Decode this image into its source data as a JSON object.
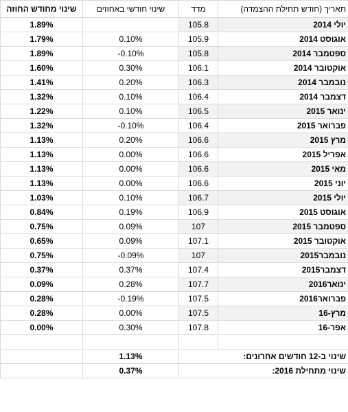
{
  "headers": {
    "pct": "שינוי מחודש החוזה",
    "change": "שינוי חודשי באחוזים",
    "index": "מדד",
    "date": "תאריך (חודש תחילת ההצמדה)"
  },
  "rows": [
    {
      "date": "יולי 2014",
      "index": "105.8",
      "change": "",
      "pct": "1.89%"
    },
    {
      "date": "אוגוסט 2014",
      "index": "105.9",
      "change": "0.10%",
      "pct": "1.79%"
    },
    {
      "date": "ספטמבר 2014",
      "index": "105.8",
      "change": "-0.10%",
      "pct": "1.89%"
    },
    {
      "date": "אוקטובר 2014",
      "index": "106.1",
      "change": "0.30%",
      "pct": "1.60%"
    },
    {
      "date": "נובמבר 2014",
      "index": "106.3",
      "change": "0.20%",
      "pct": "1.41%"
    },
    {
      "date": "דצמבר 2014",
      "index": "106.4",
      "change": "0.10%",
      "pct": "1.32%"
    },
    {
      "date": "ינואר 2015",
      "index": "106.5",
      "change": "0.10%",
      "pct": "1.22%"
    },
    {
      "date": "פברואר 2015",
      "index": "106.4",
      "change": "-0.10%",
      "pct": "1.32%"
    },
    {
      "date": "מרץ 2015",
      "index": "106.6",
      "change": "0.20%",
      "pct": "1.13%"
    },
    {
      "date": "אפריל 2015",
      "index": "106.6",
      "change": "0.00%",
      "pct": "1.13%"
    },
    {
      "date": "מאי 2015",
      "index": "106.6",
      "change": "0.00%",
      "pct": "1.13%"
    },
    {
      "date": "יוני 2015",
      "index": "106.6",
      "change": "0.00%",
      "pct": "1.13%"
    },
    {
      "date": "יולי 2015",
      "index": "106.7",
      "change": "0.10%",
      "pct": "1.03%"
    },
    {
      "date": "אוגוסט 2015",
      "index": "106.9",
      "change": "0.19%",
      "pct": "0.84%"
    },
    {
      "date": "ספטמבר 2015",
      "index": "107",
      "change": "0.09%",
      "pct": "0.75%"
    },
    {
      "date": "אוקטובר 2015",
      "index": "107.1",
      "change": "0.09%",
      "pct": "0.65%"
    },
    {
      "date": "נובמבר2015",
      "index": "107",
      "change": "-0.09%",
      "pct": "0.75%"
    },
    {
      "date": "דצמבר2015",
      "index": "107.4",
      "change": "0.37%",
      "pct": "0.37%"
    },
    {
      "date": "ינואר2016",
      "index": "107.7",
      "change": "0.28%",
      "pct": "0.09%"
    },
    {
      "date": "פברואר2016",
      "index": "107.5",
      "change": "-0.19%",
      "pct": "0.28%"
    },
    {
      "date": "מרץ-16",
      "index": "107.5",
      "change": "0.00%",
      "pct": "0.28%"
    },
    {
      "date": "אפר-16",
      "index": "107.8",
      "change": "0.30%",
      "pct": "0.00%"
    }
  ],
  "summary": [
    {
      "label": "שינוי ב-12 חודשים אחרונים:",
      "value": "1.13%"
    },
    {
      "label": "שינוי מתחילת 2016:",
      "value": "0.37%"
    }
  ]
}
